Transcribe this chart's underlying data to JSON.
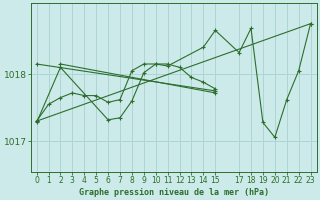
{
  "title": "Graphe pression niveau de la mer (hPa)",
  "background_color": "#cdeaea",
  "line_color": "#2d6e2d",
  "grid_color": "#aed4d4",
  "xlim": [
    -0.5,
    23.5
  ],
  "ylim": [
    1016.55,
    1019.05
  ],
  "yticks": [
    1017,
    1018
  ],
  "xtick_positions": [
    0,
    1,
    2,
    3,
    4,
    5,
    6,
    7,
    8,
    9,
    10,
    11,
    12,
    13,
    14,
    15,
    17,
    18,
    19,
    20,
    21,
    22,
    23
  ],
  "xtick_labels": [
    "0",
    "1",
    "2",
    "3",
    "4",
    "5",
    "6",
    "7",
    "8",
    "9",
    "10",
    "11",
    "12",
    "13",
    "14",
    "15",
    "17",
    "18",
    "19",
    "20",
    "21",
    "22",
    "23"
  ],
  "series": [
    {
      "x": [
        0,
        1,
        2,
        3,
        4,
        5,
        6,
        7,
        8,
        9,
        10,
        11,
        12,
        13,
        14,
        15
      ],
      "y": [
        1017.3,
        1017.55,
        1017.65,
        1017.72,
        1017.68,
        1017.68,
        1017.58,
        1017.62,
        1018.05,
        1018.15,
        1018.15,
        1018.15,
        1018.1,
        1017.95,
        1017.88,
        1017.78
      ]
    },
    {
      "x": [
        0,
        23
      ],
      "y": [
        1017.3,
        1018.75
      ]
    },
    {
      "x": [
        2,
        15
      ],
      "y": [
        1018.15,
        1017.72
      ]
    },
    {
      "x": [
        0,
        15
      ],
      "y": [
        1018.15,
        1017.75
      ]
    },
    {
      "comment": "zigzag series: 0,2,6,7,8,9,10,11,14,15,17,18,19,20,21,22,23",
      "x": [
        0,
        2,
        6,
        7,
        8,
        9,
        10,
        11,
        14,
        15,
        17,
        18,
        19,
        20,
        21,
        22,
        23
      ],
      "y": [
        1017.28,
        1018.1,
        1017.32,
        1017.35,
        1017.6,
        1018.02,
        1018.15,
        1018.12,
        1018.4,
        1018.65,
        1018.32,
        1018.68,
        1017.28,
        1017.06,
        1017.62,
        1018.05,
        1018.75
      ]
    }
  ]
}
